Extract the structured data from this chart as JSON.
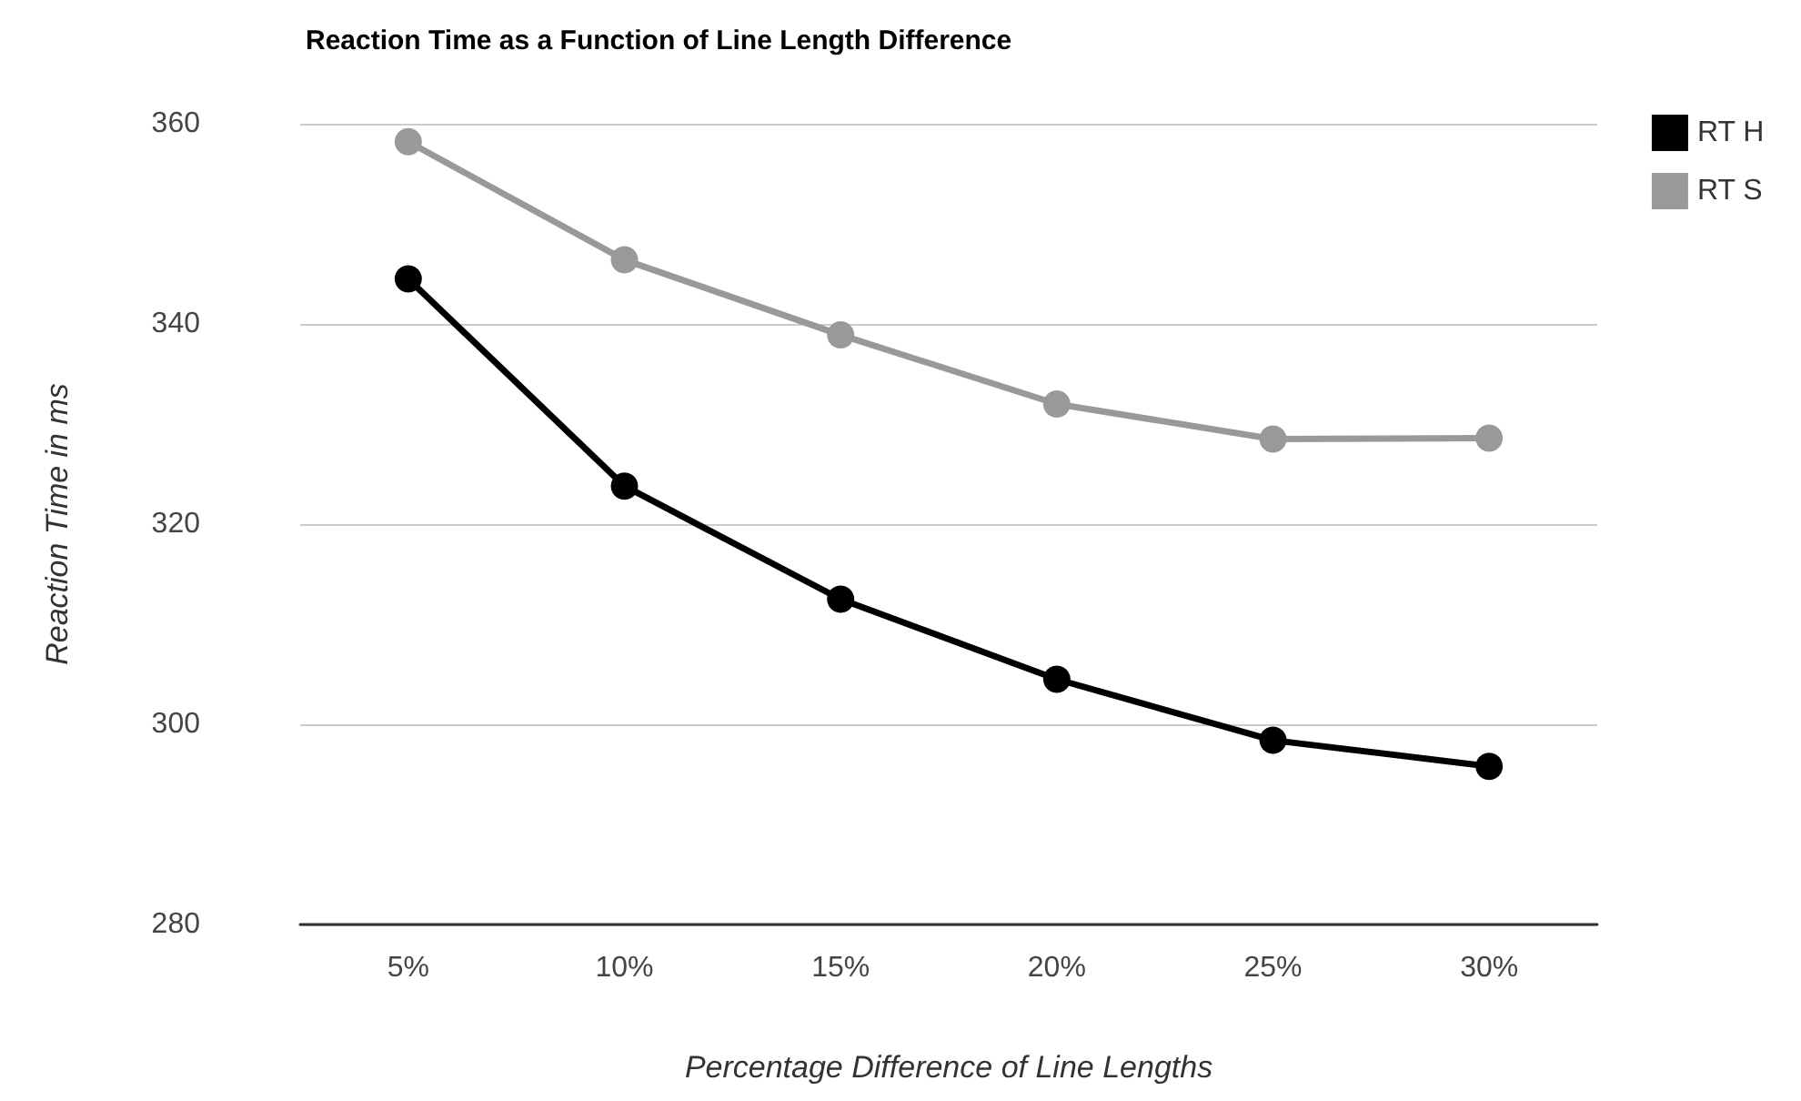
{
  "chart_data": {
    "type": "line",
    "title": "Reaction Time as a Function of Line Length Difference",
    "xlabel": "Percentage Difference of Line Lengths",
    "ylabel": "Reaction Time in ms",
    "categories": [
      "5%",
      "10%",
      "15%",
      "20%",
      "25%",
      "30%"
    ],
    "series": [
      {
        "name": "RT H",
        "color": "#000000",
        "values": [
          344.5,
          323.8,
          312.5,
          304.5,
          298.4,
          295.8
        ]
      },
      {
        "name": "RT S",
        "color": "#999999",
        "values": [
          358.2,
          346.4,
          338.9,
          332,
          328.5,
          328.6
        ]
      }
    ],
    "ylim": [
      280,
      360
    ],
    "yticks": [
      280,
      300,
      320,
      340,
      360
    ],
    "grid": "y",
    "legend": "top right",
    "marker": "circle",
    "line_style": "solid"
  }
}
